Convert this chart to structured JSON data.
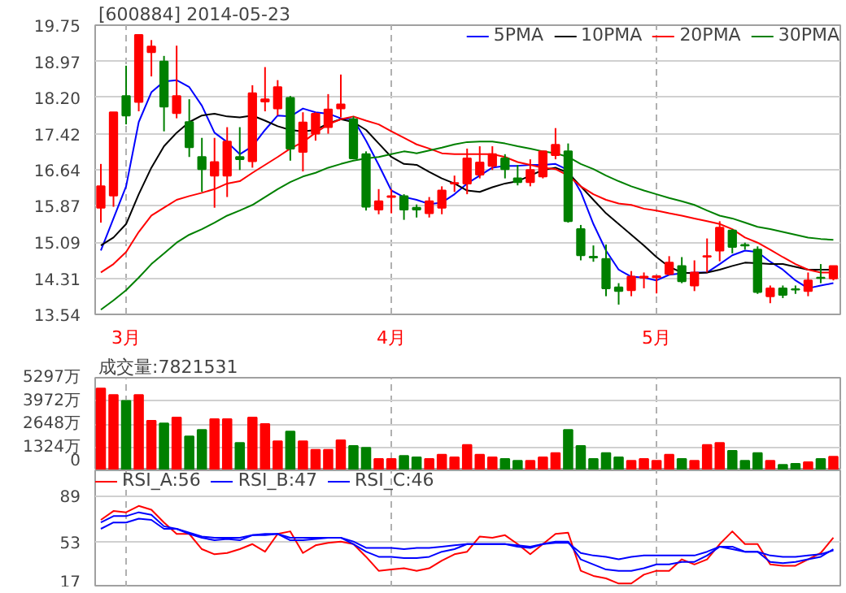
{
  "chart_data": [
    {
      "type": "candlestick",
      "title": "[600884] 2014-05-23",
      "categories": [
        null,
        null,
        "3月",
        null,
        null,
        null,
        null,
        null,
        null,
        null,
        null,
        null,
        null,
        null,
        null,
        null,
        null,
        null,
        null,
        null,
        null,
        null,
        null,
        "4月",
        null,
        null,
        null,
        null,
        null,
        null,
        null,
        null,
        null,
        null,
        null,
        null,
        null,
        null,
        null,
        null,
        null,
        null,
        null,
        null,
        "5月",
        null,
        null,
        null,
        null,
        null,
        null,
        null,
        null,
        null,
        null,
        null,
        null,
        null,
        null
      ],
      "ohlc": [
        [
          15.83,
          16.77,
          15.51,
          16.29
        ],
        [
          16.09,
          17.88,
          15.85,
          17.88
        ],
        [
          18.23,
          18.88,
          17.62,
          17.81
        ],
        [
          18.1,
          19.54,
          17.9,
          19.54
        ],
        [
          19.17,
          19.43,
          18.65,
          19.29
        ],
        [
          18.97,
          19.09,
          17.47,
          18.0
        ],
        [
          17.86,
          19.31,
          17.75,
          18.23
        ],
        [
          17.67,
          18.16,
          16.92,
          17.13
        ],
        [
          16.92,
          17.33,
          16.17,
          16.66
        ],
        [
          16.52,
          17.33,
          15.83,
          16.81
        ],
        [
          16.52,
          17.56,
          16.06,
          17.25
        ],
        [
          16.92,
          17.56,
          16.64,
          16.87
        ],
        [
          16.83,
          18.46,
          16.69,
          18.29
        ],
        [
          18.11,
          18.85,
          17.9,
          18.16
        ],
        [
          17.96,
          18.57,
          17.81,
          18.42
        ],
        [
          18.19,
          18.23,
          16.84,
          17.1
        ],
        [
          17.03,
          17.88,
          16.61,
          17.66
        ],
        [
          17.42,
          17.88,
          17.27,
          17.85
        ],
        [
          17.56,
          18.27,
          17.42,
          17.94
        ],
        [
          17.96,
          18.69,
          17.77,
          18.05
        ],
        [
          17.73,
          17.79,
          16.87,
          16.89
        ],
        [
          16.98,
          17.04,
          15.77,
          15.85
        ],
        [
          15.79,
          16.23,
          15.69,
          15.97
        ],
        [
          16.06,
          16.23,
          15.71,
          16.08
        ],
        [
          16.08,
          16.12,
          15.57,
          15.79
        ],
        [
          15.83,
          15.9,
          15.62,
          15.79
        ],
        [
          15.71,
          16.06,
          15.62,
          15.97
        ],
        [
          15.83,
          16.29,
          15.69,
          16.2
        ],
        [
          16.35,
          16.52,
          16.17,
          16.36
        ],
        [
          16.35,
          17.1,
          16.12,
          16.89
        ],
        [
          16.54,
          17.15,
          16.46,
          16.8
        ],
        [
          16.73,
          17.15,
          16.64,
          16.98
        ],
        [
          16.89,
          16.98,
          16.46,
          16.66
        ],
        [
          16.46,
          16.75,
          16.31,
          16.38
        ],
        [
          16.38,
          16.87,
          16.29,
          16.64
        ],
        [
          16.5,
          17.04,
          16.46,
          17.04
        ],
        [
          16.96,
          17.54,
          16.87,
          17.18
        ],
        [
          17.04,
          17.21,
          15.51,
          15.54
        ],
        [
          15.37,
          15.46,
          14.7,
          14.81
        ],
        [
          14.78,
          15.02,
          14.67,
          14.76
        ],
        [
          14.73,
          15.04,
          13.93,
          14.1
        ],
        [
          14.12,
          14.21,
          13.75,
          14.04
        ],
        [
          14.06,
          14.47,
          13.93,
          14.35
        ],
        [
          14.33,
          14.44,
          14.1,
          14.35
        ],
        [
          14.34,
          14.38,
          13.99,
          14.36
        ],
        [
          14.41,
          14.79,
          14.38,
          14.65
        ],
        [
          14.58,
          14.77,
          14.21,
          14.25
        ],
        [
          14.16,
          14.7,
          14.04,
          14.44
        ],
        [
          14.78,
          15.17,
          14.44,
          14.79
        ],
        [
          14.91,
          15.54,
          14.68,
          15.4
        ],
        [
          15.34,
          15.37,
          14.85,
          14.99
        ],
        [
          15.03,
          15.08,
          14.93,
          15.02
        ],
        [
          14.93,
          15.0,
          13.98,
          14.02
        ],
        [
          13.93,
          14.16,
          13.78,
          14.1
        ],
        [
          14.1,
          14.16,
          13.89,
          13.96
        ],
        [
          14.08,
          14.16,
          13.98,
          14.07
        ],
        [
          14.04,
          14.44,
          13.93,
          14.27
        ],
        [
          14.33,
          14.62,
          14.21,
          14.32
        ],
        [
          14.31,
          14.58,
          14.27,
          14.58
        ]
      ],
      "colors": [
        "#ff0000",
        "#ff0000",
        "#008000",
        "#ff0000",
        "#ff0000",
        "#008000",
        "#ff0000",
        "#008000",
        "#008000",
        "#ff0000",
        "#ff0000",
        "#008000",
        "#ff0000",
        "#ff0000",
        "#ff0000",
        "#008000",
        "#ff0000",
        "#ff0000",
        "#ff0000",
        "#ff0000",
        "#008000",
        "#008000",
        "#ff0000",
        "#ff0000",
        "#008000",
        "#008000",
        "#ff0000",
        "#ff0000",
        "#ff0000",
        "#ff0000",
        "#ff0000",
        "#ff0000",
        "#008000",
        "#008000",
        "#ff0000",
        "#ff0000",
        "#ff0000",
        "#008000",
        "#008000",
        "#008000",
        "#008000",
        "#008000",
        "#ff0000",
        "#ff0000",
        "#ff0000",
        "#ff0000",
        "#008000",
        "#ff0000",
        "#ff0000",
        "#ff0000",
        "#008000",
        "#008000",
        "#008000",
        "#ff0000",
        "#008000",
        "#008000",
        "#ff0000",
        "#008000",
        "#ff0000"
      ],
      "series": [
        {
          "name": "5PMA",
          "type": "line",
          "color": "#0000ff",
          "values": [
            14.91,
            15.6,
            16.29,
            17.67,
            18.31,
            18.54,
            18.57,
            18.42,
            18.02,
            17.44,
            17.24,
            16.98,
            17.15,
            17.5,
            17.81,
            17.79,
            17.96,
            17.88,
            17.85,
            17.75,
            17.73,
            17.27,
            16.75,
            16.2,
            16.06,
            16.0,
            15.91,
            15.94,
            16.12,
            16.35,
            16.52,
            16.69,
            16.73,
            16.73,
            16.75,
            16.75,
            16.77,
            16.64,
            16.17,
            15.48,
            14.91,
            14.5,
            14.35,
            14.33,
            14.27,
            14.39,
            14.42,
            14.44,
            14.44,
            14.62,
            14.81,
            14.91,
            14.88,
            14.67,
            14.5,
            14.27,
            14.1,
            14.16,
            14.21
          ]
        },
        {
          "name": "10PMA",
          "type": "line",
          "color": "#000000",
          "values": [
            15.02,
            15.19,
            15.48,
            16.12,
            16.69,
            17.15,
            17.44,
            17.67,
            17.81,
            17.85,
            17.79,
            17.77,
            17.81,
            17.7,
            17.58,
            17.5,
            17.47,
            17.5,
            17.64,
            17.73,
            17.67,
            17.5,
            17.21,
            16.92,
            16.77,
            16.75,
            16.6,
            16.46,
            16.35,
            16.2,
            16.17,
            16.27,
            16.35,
            16.4,
            16.52,
            16.64,
            16.69,
            16.58,
            16.29,
            16.0,
            15.71,
            15.48,
            15.25,
            15.02,
            14.77,
            14.56,
            14.44,
            14.42,
            14.44,
            14.5,
            14.58,
            14.65,
            14.64,
            14.62,
            14.62,
            14.56,
            14.5,
            14.5,
            14.5
          ]
        },
        {
          "name": "20PMA",
          "type": "line",
          "color": "#ff0000",
          "values": [
            14.44,
            14.62,
            14.88,
            15.31,
            15.66,
            15.83,
            16.0,
            16.08,
            16.15,
            16.23,
            16.35,
            16.4,
            16.58,
            16.75,
            16.92,
            17.1,
            17.24,
            17.44,
            17.62,
            17.73,
            17.79,
            17.7,
            17.62,
            17.47,
            17.33,
            17.19,
            17.1,
            17.0,
            16.98,
            16.98,
            16.98,
            16.98,
            16.92,
            16.81,
            16.75,
            16.69,
            16.66,
            16.52,
            16.29,
            16.12,
            16.0,
            15.92,
            15.89,
            15.81,
            15.77,
            15.71,
            15.66,
            15.6,
            15.54,
            15.48,
            15.37,
            15.19,
            15.08,
            14.93,
            14.77,
            14.62,
            14.5,
            14.44,
            14.44
          ]
        },
        {
          "name": "30PMA",
          "type": "line",
          "color": "#008000",
          "values": [
            13.64,
            13.84,
            14.06,
            14.33,
            14.62,
            14.85,
            15.08,
            15.25,
            15.37,
            15.51,
            15.66,
            15.77,
            15.89,
            16.06,
            16.23,
            16.38,
            16.5,
            16.58,
            16.69,
            16.77,
            16.84,
            16.89,
            16.92,
            16.98,
            17.04,
            17.0,
            17.06,
            17.12,
            17.19,
            17.24,
            17.25,
            17.25,
            17.21,
            17.15,
            17.1,
            17.04,
            17.0,
            16.92,
            16.77,
            16.66,
            16.52,
            16.4,
            16.29,
            16.2,
            16.12,
            16.04,
            15.97,
            15.89,
            15.77,
            15.66,
            15.6,
            15.51,
            15.42,
            15.37,
            15.31,
            15.25,
            15.19,
            15.16,
            15.14
          ]
        }
      ],
      "ylim": [
        13.54,
        19.75
      ],
      "yticks": [
        13.54,
        14.31,
        15.09,
        15.87,
        16.64,
        17.42,
        {
          "value": 18.2,
          "label": "18.20"
        },
        18.97,
        19.75
      ],
      "grid": true,
      "legend": "top right"
    },
    {
      "type": "bar",
      "title": "成交量:7821531",
      "categories": [
        null,
        null,
        null,
        null,
        null,
        null,
        null,
        null,
        null,
        null,
        null,
        null,
        null,
        null,
        null,
        null,
        null,
        null,
        null,
        null,
        null,
        null,
        null,
        null,
        null,
        null,
        null,
        null,
        null,
        null,
        null,
        null,
        null,
        null,
        null,
        null,
        null,
        null,
        null,
        null,
        null,
        null,
        null,
        null,
        null,
        null,
        null,
        null,
        null,
        null,
        null,
        null,
        null,
        null,
        null,
        null,
        null,
        null,
        null
      ],
      "values": [
        4680,
        4310,
        3970,
        4310,
        2830,
        2680,
        3020,
        1940,
        2310,
        2930,
        2930,
        1570,
        3020,
        2650,
        1660,
        2220,
        1660,
        1170,
        1170,
        1720,
        1390,
        1290,
        650,
        650,
        830,
        740,
        650,
        890,
        740,
        1450,
        890,
        740,
        650,
        550,
        550,
        740,
        990,
        2310,
        1390,
        650,
        990,
        740,
        550,
        650,
        550,
        890,
        650,
        550,
        1450,
        1570,
        1110,
        550,
        990,
        550,
        310,
        370,
        460,
        650,
        782
      ],
      "colors": [
        "#ff0000",
        "#ff0000",
        "#008000",
        "#ff0000",
        "#ff0000",
        "#008000",
        "#ff0000",
        "#008000",
        "#008000",
        "#ff0000",
        "#ff0000",
        "#008000",
        "#ff0000",
        "#ff0000",
        "#ff0000",
        "#008000",
        "#ff0000",
        "#ff0000",
        "#ff0000",
        "#ff0000",
        "#008000",
        "#008000",
        "#ff0000",
        "#ff0000",
        "#008000",
        "#008000",
        "#ff0000",
        "#ff0000",
        "#ff0000",
        "#ff0000",
        "#ff0000",
        "#ff0000",
        "#008000",
        "#008000",
        "#ff0000",
        "#ff0000",
        "#ff0000",
        "#008000",
        "#008000",
        "#008000",
        "#008000",
        "#008000",
        "#ff0000",
        "#ff0000",
        "#ff0000",
        "#ff0000",
        "#008000",
        "#ff0000",
        "#ff0000",
        "#ff0000",
        "#008000",
        "#008000",
        "#008000",
        "#ff0000",
        "#008000",
        "#008000",
        "#ff0000",
        "#008000",
        "#ff0000"
      ],
      "ylim": [
        0,
        5297
      ],
      "yticks": [
        0,
        {
          "value": 1324,
          "label": "1324万"
        },
        {
          "value": 2648,
          "label": "2648万"
        },
        {
          "value": 3972,
          "label": "3972万"
        },
        {
          "value": 5297,
          "label": "5297万"
        }
      ],
      "grid": true,
      "tick_labels": "y"
    },
    {
      "type": "line",
      "categories": [
        null,
        null,
        null,
        null,
        null,
        null,
        null,
        null,
        null,
        null,
        null,
        null,
        null,
        null,
        null,
        null,
        null,
        null,
        null,
        null,
        null,
        null,
        null,
        null,
        null,
        null,
        null,
        null,
        null,
        null,
        null,
        null,
        null,
        null,
        null,
        null,
        null,
        null,
        null,
        null,
        null,
        null,
        null,
        null,
        null,
        null,
        null,
        null,
        null,
        null,
        null,
        null,
        null,
        null,
        null,
        null,
        null,
        null,
        null
      ],
      "series": [
        {
          "name": "RSI_A:56",
          "color": "#ff0000",
          "values": [
            70,
            77,
            76,
            81,
            78,
            68,
            59,
            59,
            47,
            43,
            44,
            47,
            51,
            45,
            59,
            61,
            44,
            50,
            52,
            53,
            51,
            41,
            30,
            31,
            32,
            30,
            32,
            38,
            43,
            45,
            57,
            56,
            58,
            51,
            43,
            51,
            59,
            60,
            30,
            26,
            24,
            20,
            20,
            27,
            30,
            30,
            39,
            35,
            39,
            51,
            61,
            51,
            51,
            35,
            34,
            34,
            39,
            44,
            56
          ]
        },
        {
          "name": "RSI_B:47",
          "color": "#0000ff",
          "values": [
            68,
            73,
            73,
            76,
            74,
            65,
            63,
            59,
            56,
            54,
            55,
            54,
            58,
            58,
            59,
            54,
            54,
            55,
            56,
            56,
            51,
            45,
            41,
            41,
            40,
            40,
            41,
            45,
            47,
            51,
            51,
            51,
            51,
            49,
            48,
            51,
            53,
            53,
            39,
            35,
            31,
            30,
            30,
            32,
            35,
            35,
            37,
            37,
            42,
            49,
            49,
            45,
            45,
            37,
            36,
            37,
            39,
            41,
            47
          ]
        },
        {
          "name": "RSI_C:46",
          "color": "#0000ff",
          "values": [
            63,
            68,
            68,
            71,
            70,
            63,
            63,
            60,
            57,
            56,
            56,
            56,
            58,
            59,
            59,
            56,
            56,
            56,
            56,
            56,
            53,
            48,
            48,
            48,
            47,
            48,
            48,
            49,
            50,
            51,
            51,
            51,
            51,
            50,
            49,
            51,
            52,
            52,
            44,
            42,
            41,
            39,
            41,
            42,
            42,
            42,
            42,
            42,
            45,
            49,
            47,
            45,
            45,
            42,
            41,
            41,
            42,
            43,
            46
          ]
        }
      ],
      "ylim": [
        17,
        109
      ],
      "yticks": [
        17,
        53,
        89
      ],
      "grid": true,
      "legend": "top left",
      "tick_labels": "y"
    }
  ]
}
